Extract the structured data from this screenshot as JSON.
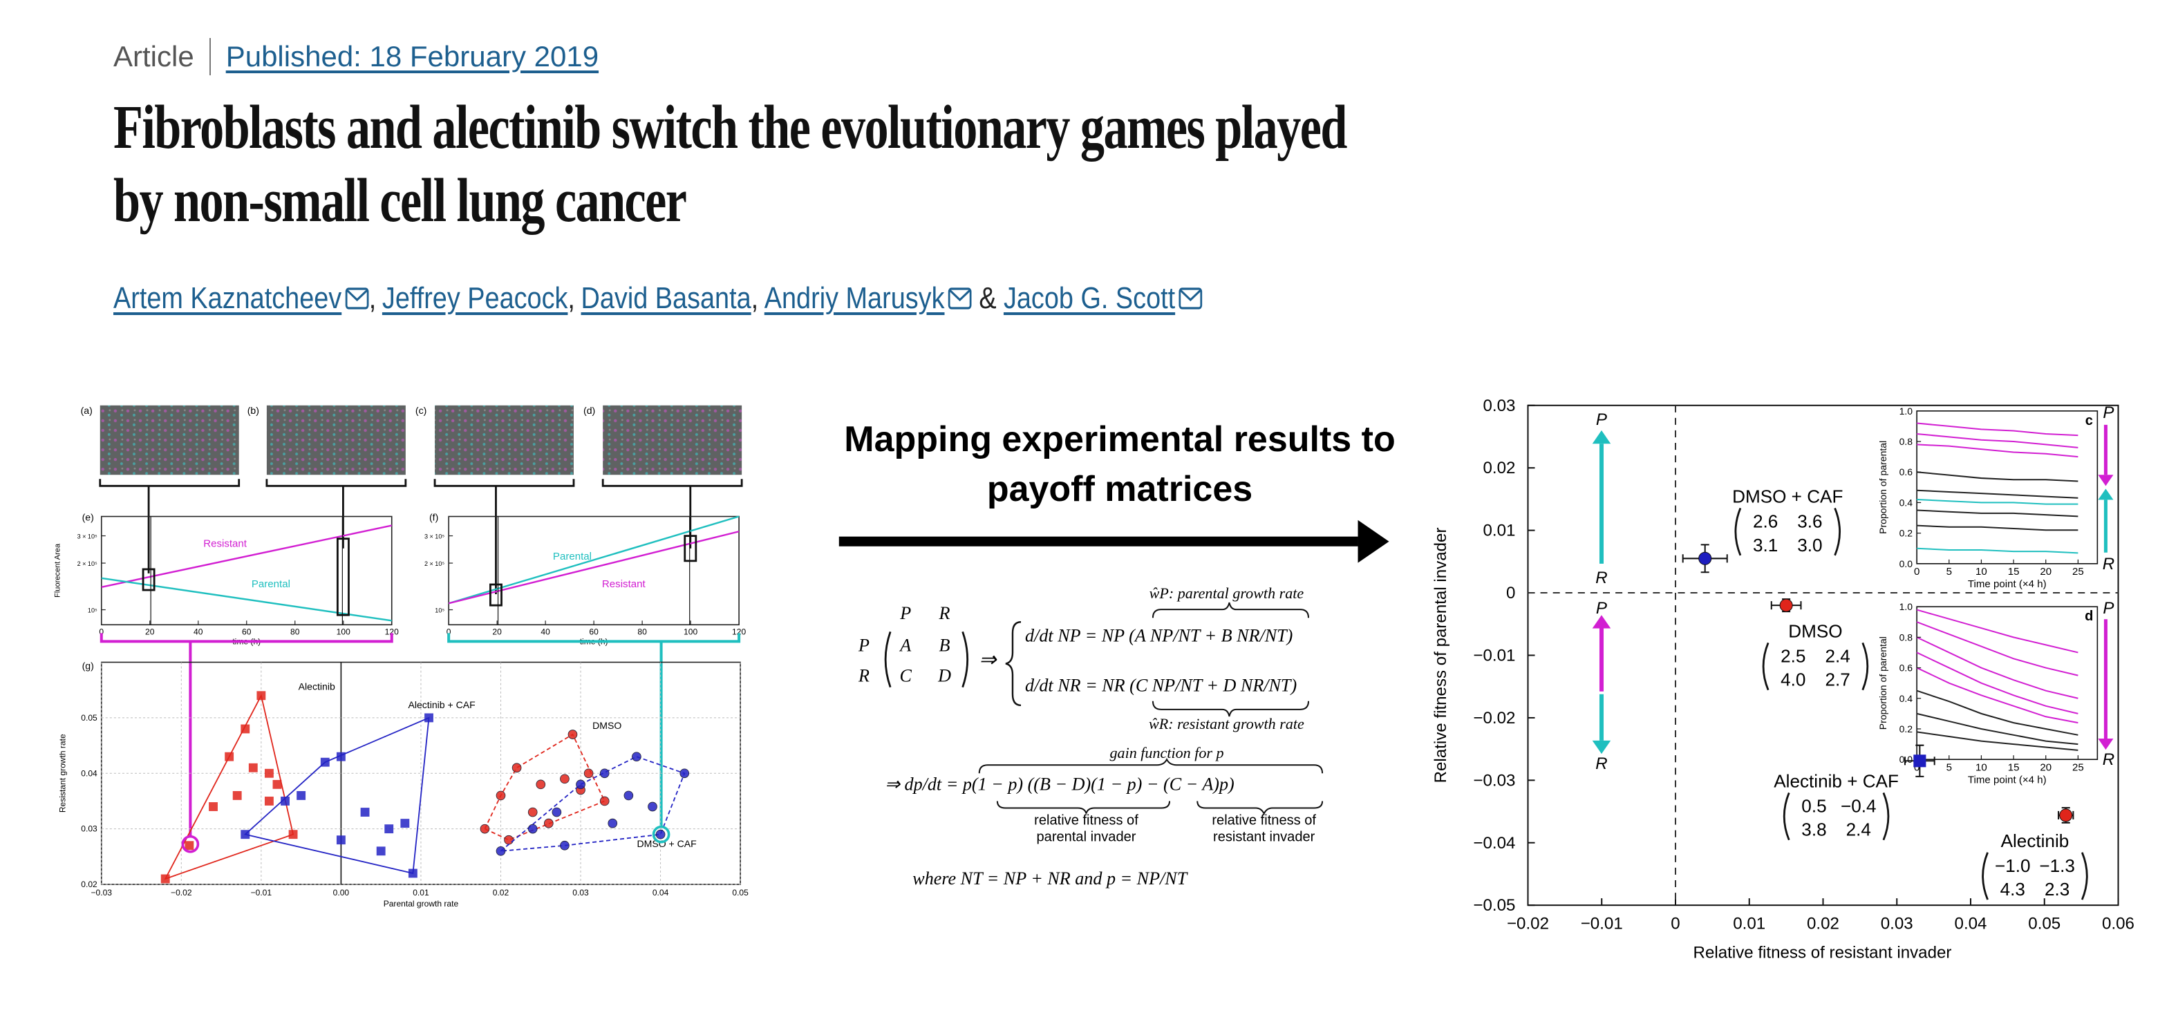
{
  "header": {
    "article_type": "Article",
    "published": "Published: 18 February 2019"
  },
  "title": "Fibroblasts and alectinib switch the evolutionary games played by non-small cell lung cancer",
  "authors": [
    {
      "name": "Artem Kaznatcheev",
      "email": true
    },
    {
      "name": "Jeffrey Peacock",
      "email": false
    },
    {
      "name": "David Basanta",
      "email": false
    },
    {
      "name": "Andriy Marusyk",
      "email": true
    },
    {
      "name": "Jacob G. Scott",
      "email": true
    }
  ],
  "author_separator": ",",
  "author_conjunction": "&",
  "left_figure": {
    "micrographs": [
      "(a)",
      "(b)",
      "(c)",
      "(d)"
    ],
    "panels": [
      {
        "label": "(e)",
        "type": "line",
        "xlabel": "time (h)",
        "ylabel": "Fluorecent Area",
        "yscale": "log",
        "xlim": [
          0,
          120
        ],
        "xticks": [
          0,
          20,
          40,
          60,
          80,
          100,
          120
        ],
        "ylim": [
          80000,
          400000
        ],
        "yticks": [
          {
            "value": 100000,
            "label": "10⁵"
          },
          {
            "value": 200000,
            "label": "2 × 10⁵"
          },
          {
            "value": 300000,
            "label": "3 × 10⁵"
          }
        ],
        "x": [
          0,
          120
        ],
        "series": [
          {
            "name": "Resistant",
            "color": "#d21fd2",
            "values": [
              140000,
              350000
            ]
          },
          {
            "name": "Parental",
            "color": "#1fbfbf",
            "values": [
              160000,
              85000
            ]
          }
        ]
      },
      {
        "label": "(f)",
        "type": "line",
        "xlabel": "time (h)",
        "yscale": "log",
        "xlim": [
          0,
          120
        ],
        "xticks": [
          0,
          20,
          40,
          60,
          80,
          100,
          120
        ],
        "ylim": [
          80000,
          400000
        ],
        "yticks": [
          {
            "value": 100000,
            "label": "10⁵"
          },
          {
            "value": 200000,
            "label": "2 × 10⁵"
          },
          {
            "value": 300000,
            "label": "3 × 10⁵"
          }
        ],
        "x": [
          0,
          120
        ],
        "series": [
          {
            "name": "Parental",
            "color": "#1fbfbf",
            "values": [
              110000,
              400000
            ]
          },
          {
            "name": "Resistant",
            "color": "#d21fd2",
            "values": [
              110000,
              320000
            ]
          }
        ]
      }
    ],
    "scatter": {
      "label": "(g)",
      "type": "scatter",
      "xlabel": "Parental growth rate",
      "ylabel": "Resistant growth rate",
      "xlim": [
        -0.03,
        0.05
      ],
      "xticks": [
        {
          "value": -0.03,
          "label": "−0.03"
        },
        {
          "value": -0.02,
          "label": "−0.02"
        },
        {
          "value": -0.01,
          "label": "−0.01"
        },
        {
          "value": 0,
          "label": "0.00"
        },
        0.01,
        0.02,
        0.03,
        0.04,
        0.05
      ],
      "ylim": [
        0.02,
        0.06
      ],
      "yticks": [
        0.02,
        0.03,
        0.04,
        0.05
      ],
      "grid": true,
      "series": [
        {
          "name": "Alectinib",
          "color": "#e0251b",
          "marker": "square",
          "line_style": "solid",
          "x": [
            -0.01,
            -0.012,
            -0.014,
            -0.009,
            -0.008,
            -0.011,
            -0.013,
            -0.016,
            -0.019,
            -0.022,
            -0.006,
            -0.009
          ],
          "values": [
            0.054,
            0.048,
            0.043,
            0.04,
            0.038,
            0.041,
            0.036,
            0.034,
            0.027,
            0.021,
            0.029,
            0.035
          ]
        },
        {
          "name": "Alectinib + CAF",
          "color": "#2323c4",
          "marker": "square",
          "line_style": "solid",
          "x": [
            0.011,
            0.0,
            -0.002,
            -0.005,
            0.003,
            0.006,
            0.008,
            -0.007,
            -0.012,
            0.0,
            0.005,
            0.009
          ],
          "values": [
            0.05,
            0.043,
            0.042,
            0.036,
            0.033,
            0.03,
            0.031,
            0.035,
            0.029,
            0.028,
            0.026,
            0.022
          ]
        },
        {
          "name": "DMSO",
          "color": "#e0251b",
          "marker": "circle",
          "line_style": "dashed",
          "x": [
            0.029,
            0.022,
            0.025,
            0.02,
            0.028,
            0.031,
            0.033,
            0.024,
            0.018,
            0.026,
            0.03,
            0.021
          ],
          "values": [
            0.047,
            0.041,
            0.038,
            0.036,
            0.039,
            0.04,
            0.035,
            0.033,
            0.03,
            0.031,
            0.037,
            0.028
          ]
        },
        {
          "name": "DMSO + CAF",
          "color": "#2323c4",
          "marker": "circle",
          "line_style": "dashed",
          "x": [
            0.04,
            0.037,
            0.033,
            0.03,
            0.027,
            0.024,
            0.036,
            0.043,
            0.02,
            0.028,
            0.034,
            0.039
          ],
          "values": [
            0.029,
            0.043,
            0.04,
            0.038,
            0.033,
            0.03,
            0.036,
            0.04,
            0.026,
            0.027,
            0.031,
            0.034
          ]
        }
      ]
    }
  },
  "mapping_caption": "Mapping experimental results to payoff matrices",
  "equations": {
    "matrix_columns": [
      "P",
      "R"
    ],
    "matrix_rows": [
      "P",
      "R"
    ],
    "matrix": [
      [
        "A",
        "B"
      ],
      [
        "C",
        "D"
      ]
    ],
    "implies": "⇒",
    "parental_rate": "ŵP: parental growth rate",
    "system": [
      "d/dt NP = NP (A NP/NT + B NR/NT)",
      "d/dt NR = NR (C NP/NT + D NR/NT)"
    ],
    "resistant_rate": "ŵR: resistant growth rate",
    "gain_label": "gain function for p",
    "gain_equation": "⇒ dp/dt = p(1 − p) ((B − D)(1 − p) − (C − A)p)",
    "parental_fitness": [
      "relative fitness of",
      "parental invader"
    ],
    "resistant_fitness": [
      "relative fitness of",
      "resistant invader"
    ],
    "definition": "where NT = NP + NR and p = NP/NT"
  },
  "chart_data": {
    "type": "scatter",
    "xlabel": "Relative fitness of resistant invader",
    "ylabel": "Relative fitness of parental invader",
    "xlim": [
      -0.02,
      0.06
    ],
    "xticks": [
      {
        "value": -0.02,
        "label": "−0.02"
      },
      {
        "value": -0.01,
        "label": "−0.01"
      },
      0,
      0.01,
      0.02,
      0.03,
      0.04,
      0.05,
      0.06
    ],
    "ylim": [
      -0.05,
      0.03
    ],
    "yticks": [
      {
        "value": -0.05,
        "label": "−0.05"
      },
      {
        "value": -0.04,
        "label": "−0.04"
      },
      {
        "value": -0.03,
        "label": "−0.03"
      },
      {
        "value": -0.02,
        "label": "−0.02"
      },
      {
        "value": -0.01,
        "label": "−0.01"
      },
      0,
      0.01,
      0.02,
      0.03
    ],
    "reference_lines": true,
    "arrow_labels": [
      "P",
      "R"
    ],
    "series": [
      {
        "name": "DMSO + CAF",
        "color": "#1d1dbf",
        "marker": "circle",
        "x": 0.004,
        "values": 0.0055,
        "x_err": 0.003,
        "y_err": 0.0022,
        "matrix": [
          "2.6",
          "3.6",
          "3.1",
          "3.0"
        ]
      },
      {
        "name": "DMSO",
        "color": "#e0251b",
        "marker": "circle",
        "x": 0.015,
        "values": -0.002,
        "x_err": 0.002,
        "y_err": 0.001,
        "matrix": [
          "2.5",
          "2.4",
          "4.0",
          "2.7"
        ]
      },
      {
        "name": "Alectinib + CAF",
        "color": "#1d1dbf",
        "marker": "square",
        "x": 0.0331,
        "values": -0.0269,
        "x_err": 0.002,
        "y_err": 0.0025,
        "matrix": [
          "0.5",
          "−0.4",
          "3.8",
          "2.4"
        ]
      },
      {
        "name": "Alectinib",
        "color": "#e0251b",
        "marker": "circle",
        "x": 0.0529,
        "values": -0.0356,
        "x_err": 0.001,
        "y_err": 0.0012,
        "matrix": [
          "−1.0",
          "−1.3",
          "4.3",
          "2.3"
        ]
      }
    ],
    "insets": [
      {
        "label": "c",
        "ylabel": "Proportion of parental",
        "xlabel": "Time point (×4 h)",
        "xlim": [
          0,
          28
        ],
        "xticks": [
          0,
          5,
          10,
          15,
          20,
          25
        ],
        "ylim": [
          0,
          1
        ],
        "yticks": [
          {
            "value": 0,
            "label": "0.0"
          },
          {
            "value": 0.2,
            "label": "0.2"
          },
          {
            "value": 0.4,
            "label": "0.4"
          },
          {
            "value": 0.6,
            "label": "0.6"
          },
          {
            "value": 0.8,
            "label": "0.8"
          },
          {
            "value": 1,
            "label": "1.0"
          }
        ],
        "x": [
          0,
          5,
          10,
          15,
          20,
          25
        ],
        "series": [
          {
            "color": "#d21fd2",
            "values": [
              0.92,
              0.9,
              0.88,
              0.87,
              0.85,
              0.84
            ]
          },
          {
            "color": "#d21fd2",
            "values": [
              0.85,
              0.83,
              0.81,
              0.8,
              0.78,
              0.76
            ]
          },
          {
            "color": "#d21fd2",
            "values": [
              0.78,
              0.77,
              0.75,
              0.73,
              0.72,
              0.7
            ]
          },
          {
            "color": "#222222",
            "values": [
              0.6,
              0.58,
              0.56,
              0.55,
              0.55,
              0.54
            ]
          },
          {
            "color": "#222222",
            "values": [
              0.48,
              0.47,
              0.46,
              0.45,
              0.44,
              0.43
            ]
          },
          {
            "color": "#222222",
            "values": [
              0.35,
              0.34,
              0.33,
              0.33,
              0.32,
              0.31
            ]
          },
          {
            "color": "#222222",
            "values": [
              0.25,
              0.24,
              0.24,
              0.23,
              0.22,
              0.22
            ]
          },
          {
            "color": "#1fbfbf",
            "values": [
              0.42,
              0.41,
              0.4,
              0.4,
              0.39,
              0.39
            ]
          },
          {
            "color": "#1fbfbf",
            "values": [
              0.1,
              0.09,
              0.09,
              0.08,
              0.08,
              0.07
            ]
          }
        ]
      },
      {
        "label": "d",
        "ylabel": "Proportion of parental",
        "xlabel": "Time point (×4 h)",
        "xlim": [
          0,
          28
        ],
        "xticks": [
          0,
          5,
          10,
          15,
          20,
          25
        ],
        "ylim": [
          0,
          1
        ],
        "yticks": [
          {
            "value": 0,
            "label": "0.0"
          },
          {
            "value": 0.2,
            "label": "0.2"
          },
          {
            "value": 0.4,
            "label": "0.4"
          },
          {
            "value": 0.6,
            "label": "0.6"
          },
          {
            "value": 0.8,
            "label": "0.8"
          },
          {
            "value": 1,
            "label": "1.0"
          }
        ],
        "x": [
          0,
          5,
          10,
          15,
          20,
          25
        ],
        "series": [
          {
            "color": "#d21fd2",
            "values": [
              0.98,
              0.92,
              0.86,
              0.8,
              0.75,
              0.7
            ]
          },
          {
            "color": "#d21fd2",
            "values": [
              0.9,
              0.82,
              0.74,
              0.66,
              0.6,
              0.55
            ]
          },
          {
            "color": "#d21fd2",
            "values": [
              0.8,
              0.7,
              0.6,
              0.52,
              0.45,
              0.4
            ]
          },
          {
            "color": "#d21fd2",
            "values": [
              0.7,
              0.6,
              0.5,
              0.42,
              0.35,
              0.3
            ]
          },
          {
            "color": "#d21fd2",
            "values": [
              0.6,
              0.5,
              0.42,
              0.35,
              0.28,
              0.24
            ]
          },
          {
            "color": "#222222",
            "values": [
              0.45,
              0.38,
              0.3,
              0.24,
              0.2,
              0.16
            ]
          },
          {
            "color": "#222222",
            "values": [
              0.3,
              0.25,
              0.2,
              0.16,
              0.12,
              0.1
            ]
          },
          {
            "color": "#222222",
            "values": [
              0.18,
              0.15,
              0.12,
              0.1,
              0.08,
              0.06
            ]
          }
        ]
      }
    ]
  }
}
